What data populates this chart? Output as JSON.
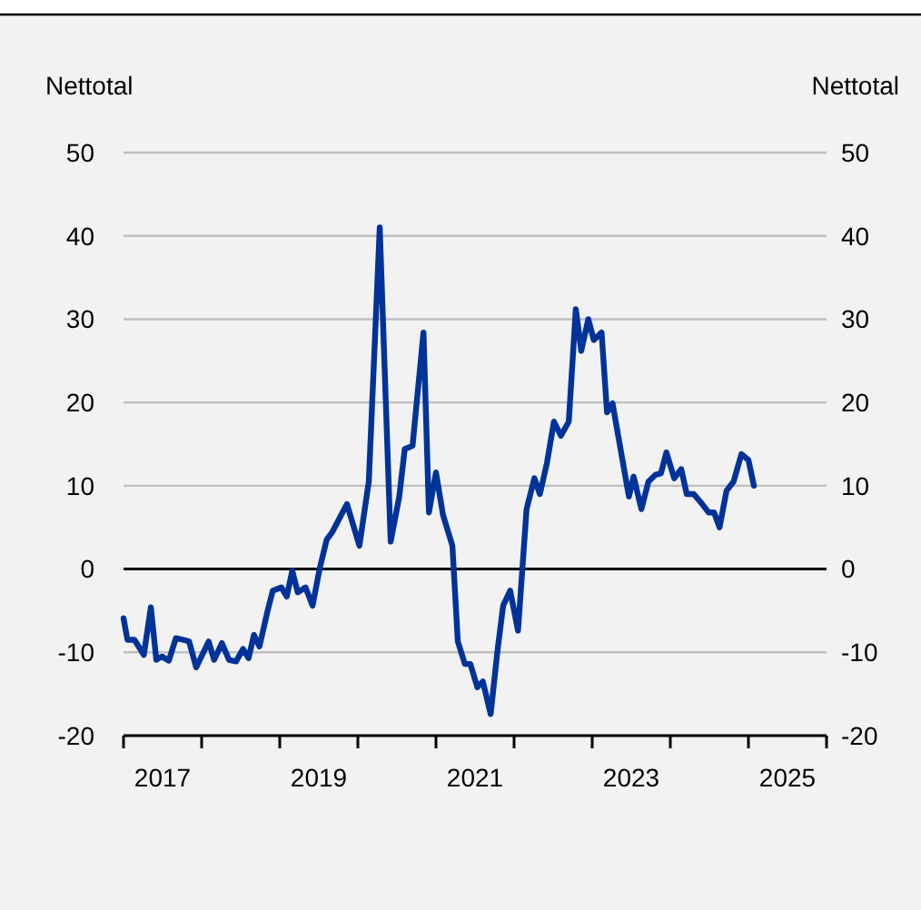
{
  "chart_data": {
    "type": "line",
    "ylabel": "Nettotal",
    "y2label": "Nettotal",
    "x": [
      2017.0,
      2017.05,
      2017.14,
      2017.26,
      2017.35,
      2017.42,
      2017.49,
      2017.58,
      2017.67,
      2017.77,
      2017.84,
      2017.93,
      2018.09,
      2018.16,
      2018.26,
      2018.35,
      2018.44,
      2018.53,
      2018.6,
      2018.67,
      2018.74,
      2018.84,
      2018.91,
      2019.02,
      2019.09,
      2019.16,
      2019.23,
      2019.33,
      2019.42,
      2019.51,
      2019.6,
      2019.67,
      2019.86,
      2020.02,
      2020.14,
      2020.28,
      2020.42,
      2020.53,
      2020.6,
      2020.7,
      2020.84,
      2020.91,
      2021.0,
      2021.09,
      2021.21,
      2021.28,
      2021.37,
      2021.44,
      2021.53,
      2021.6,
      2021.7,
      2021.79,
      2021.86,
      2021.95,
      2022.05,
      2022.16,
      2022.26,
      2022.33,
      2022.42,
      2022.51,
      2022.6,
      2022.7,
      2022.79,
      2022.86,
      2022.95,
      2023.02,
      2023.12,
      2023.19,
      2023.26,
      2023.47,
      2023.53,
      2023.63,
      2023.72,
      2023.81,
      2023.88,
      2023.95,
      2024.05,
      2024.14,
      2024.21,
      2024.3,
      2024.4,
      2024.49,
      2024.56,
      2024.63,
      2024.72,
      2024.81,
      2024.91,
      2025.0,
      2025.07
    ],
    "series": [
      {
        "color": "#003399",
        "values": [
          -5.9,
          -8.5,
          -8.5,
          -10.3,
          -4.6,
          -10.9,
          -10.5,
          -11,
          -8.3,
          -8.5,
          -8.7,
          -11.8,
          -8.7,
          -10.9,
          -8.9,
          -10.9,
          -11.1,
          -9.6,
          -10.7,
          -7.9,
          -9.3,
          -5.2,
          -2.6,
          -2.2,
          -3.3,
          -0.2,
          -2.8,
          -2.2,
          -4.4,
          0,
          3.5,
          4.4,
          7.8,
          2.8,
          10.5,
          41,
          3.3,
          8.7,
          14.4,
          14.8,
          28.4,
          6.8,
          11.6,
          6.5,
          2.8,
          -8.7,
          -11.4,
          -11.4,
          -14.2,
          -13.5,
          -17.4,
          -9.6,
          -4.4,
          -2.6,
          -7.4,
          7.2,
          10.9,
          9,
          12.7,
          17.7,
          16,
          17.7,
          31.2,
          26.2,
          30,
          27.5,
          28.4,
          18.8,
          19.9,
          8.7,
          11.1,
          7.2,
          10.5,
          11.3,
          11.5,
          14,
          10.9,
          12,
          9,
          9,
          7.9,
          6.8,
          6.8,
          5,
          9.4,
          10.5,
          13.8,
          13.1,
          10
        ]
      }
    ],
    "xlim": [
      2017,
      2026
    ],
    "xticks": [
      {
        "value": 2017,
        "label": null
      },
      {
        "value": 2018,
        "label": null
      },
      {
        "value": 2019,
        "label": null
      },
      {
        "value": 2020,
        "label": null
      },
      {
        "value": 2021,
        "label": null
      },
      {
        "value": 2022,
        "label": null
      },
      {
        "value": 2023,
        "label": null
      },
      {
        "value": 2024,
        "label": null
      },
      {
        "value": 2025,
        "label": null
      },
      {
        "value": 2026,
        "label": null
      },
      {
        "value": 2017.5,
        "label": "2017"
      },
      {
        "value": 2019.5,
        "label": "2019"
      },
      {
        "value": 2021.5,
        "label": "2021"
      },
      {
        "value": 2023.5,
        "label": "2023"
      },
      {
        "value": 2025.5,
        "label": "2025"
      }
    ],
    "ylim": [
      -20,
      50
    ],
    "yticks": [
      -20,
      -10,
      0,
      10,
      20,
      30,
      40,
      50
    ],
    "y2lim": [
      -20,
      50
    ],
    "y2ticks": [
      -20,
      -10,
      0,
      10,
      20,
      30,
      40,
      50
    ],
    "ref_lines": [
      {
        "axis": "y",
        "value": 0,
        "color": "#000000"
      }
    ],
    "grid": "y",
    "line_style": "solid",
    "marker": "none"
  }
}
